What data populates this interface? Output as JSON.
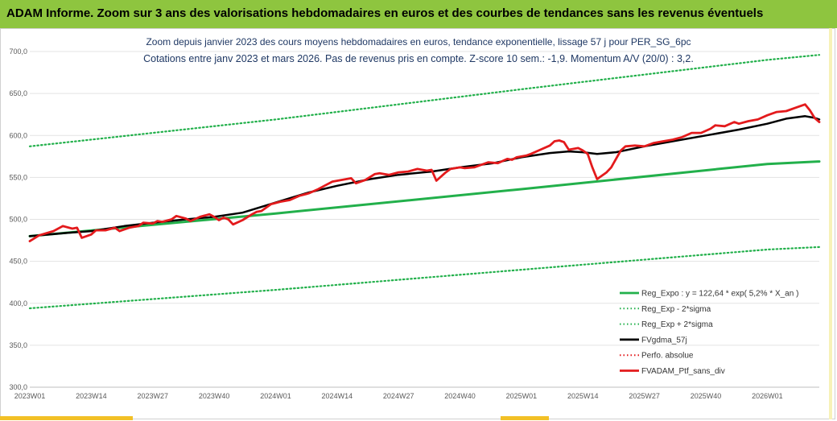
{
  "header": {
    "title": "ADAM Informe. Zoom sur 3 ans des valorisations hebdomadaires en euros et des courbes de tendances sans les revenus éventuels"
  },
  "chart_data": {
    "type": "line",
    "title": "Zoom depuis janvier 2023 des cours moyens hebdomadaires  en euros, tendance exponentielle, lissage 57 j pour PER_SG_6pc",
    "subtitle": "Cotations  entre janv 2023 et mars 2026. Pas de revenus pris en compte. Z-score 10 sem.: -1,9. Momentum A/V (20/0) : 3,2.",
    "ylim": [
      300,
      700
    ],
    "yticks": [
      "300,0",
      "350,0",
      "400,0",
      "450,0",
      "500,0",
      "550,0",
      "600,0",
      "650,0",
      "700,0"
    ],
    "ytick_values": [
      300,
      350,
      400,
      450,
      500,
      550,
      600,
      650,
      700
    ],
    "xticks": [
      "2023W01",
      "2023W14",
      "2023W27",
      "2023W40",
      "2024W01",
      "2024W14",
      "2024W27",
      "2024W40",
      "2025W01",
      "2025W14",
      "2025W27",
      "2025W40",
      "2026W01"
    ],
    "x_range_weeks": [
      0,
      167
    ],
    "grid": "horizontal",
    "legend_position": "bottom-right",
    "series": [
      {
        "name": "Reg_Expo : y = 122,64 * exp( 5,2% *  X_an )",
        "color": "#22b04b",
        "style": "solid",
        "points": [
          [
            0,
            480
          ],
          [
            52,
            507
          ],
          [
            104,
            536
          ],
          [
            156,
            566
          ],
          [
            167,
            569
          ]
        ]
      },
      {
        "name": "Reg_Exp - 2*sigma",
        "color": "#22b04b",
        "style": "dotted",
        "points": [
          [
            0,
            394
          ],
          [
            52,
            416
          ],
          [
            104,
            440
          ],
          [
            156,
            464
          ],
          [
            167,
            467
          ]
        ]
      },
      {
        "name": "Reg_Exp + 2*sigma",
        "color": "#22b04b",
        "style": "dotted",
        "points": [
          [
            0,
            587
          ],
          [
            52,
            619
          ],
          [
            104,
            655
          ],
          [
            156,
            690
          ],
          [
            167,
            696
          ]
        ]
      },
      {
        "name": "FVgdma_57j",
        "color": "#000000",
        "style": "solid",
        "points": [
          [
            0,
            480
          ],
          [
            8,
            484
          ],
          [
            13,
            486
          ],
          [
            20,
            492
          ],
          [
            26,
            496
          ],
          [
            33,
            500
          ],
          [
            39,
            503
          ],
          [
            45,
            508
          ],
          [
            52,
            520
          ],
          [
            59,
            532
          ],
          [
            65,
            540
          ],
          [
            72,
            548
          ],
          [
            78,
            553
          ],
          [
            85,
            557
          ],
          [
            91,
            562
          ],
          [
            98,
            567
          ],
          [
            104,
            574
          ],
          [
            110,
            579
          ],
          [
            114,
            581
          ],
          [
            117,
            580
          ],
          [
            120,
            578
          ],
          [
            124,
            580
          ],
          [
            130,
            587
          ],
          [
            136,
            593
          ],
          [
            143,
            600
          ],
          [
            150,
            607
          ],
          [
            156,
            614
          ],
          [
            160,
            620
          ],
          [
            164,
            623
          ],
          [
            166,
            621
          ],
          [
            167,
            619
          ]
        ]
      },
      {
        "name": "Perfo. absolue",
        "color": "#e31a1c",
        "style": "dotted",
        "points": []
      },
      {
        "name": "FVADAM_Ptf_sans_div",
        "color": "#e31a1c",
        "style": "solid",
        "points": [
          [
            0,
            474
          ],
          [
            2,
            481
          ],
          [
            5,
            486
          ],
          [
            7,
            492
          ],
          [
            9,
            489
          ],
          [
            10,
            490
          ],
          [
            11,
            478
          ],
          [
            13,
            482
          ],
          [
            14,
            487
          ],
          [
            16,
            487
          ],
          [
            18,
            490
          ],
          [
            19,
            486
          ],
          [
            21,
            490
          ],
          [
            23,
            492
          ],
          [
            24,
            496
          ],
          [
            26,
            495
          ],
          [
            27,
            498
          ],
          [
            28,
            497
          ],
          [
            30,
            500
          ],
          [
            31,
            504
          ],
          [
            33,
            501
          ],
          [
            34,
            498
          ],
          [
            36,
            503
          ],
          [
            38,
            506
          ],
          [
            39,
            503
          ],
          [
            40,
            499
          ],
          [
            41,
            502
          ],
          [
            42,
            500
          ],
          [
            43,
            494
          ],
          [
            45,
            499
          ],
          [
            47,
            506
          ],
          [
            48,
            509
          ],
          [
            49,
            510
          ],
          [
            51,
            518
          ],
          [
            53,
            521
          ],
          [
            55,
            523
          ],
          [
            57,
            528
          ],
          [
            59,
            531
          ],
          [
            61,
            536
          ],
          [
            62,
            539
          ],
          [
            64,
            545
          ],
          [
            66,
            547
          ],
          [
            68,
            549
          ],
          [
            69,
            543
          ],
          [
            71,
            547
          ],
          [
            73,
            554
          ],
          [
            74,
            555
          ],
          [
            76,
            553
          ],
          [
            78,
            556
          ],
          [
            80,
            557
          ],
          [
            82,
            560
          ],
          [
            84,
            558
          ],
          [
            85,
            559
          ],
          [
            86,
            546
          ],
          [
            88,
            556
          ],
          [
            89,
            560
          ],
          [
            91,
            562
          ],
          [
            92,
            561
          ],
          [
            94,
            562
          ],
          [
            96,
            566
          ],
          [
            97,
            568
          ],
          [
            99,
            567
          ],
          [
            101,
            572
          ],
          [
            102,
            571
          ],
          [
            103,
            574
          ],
          [
            105,
            576
          ],
          [
            106,
            578
          ],
          [
            108,
            583
          ],
          [
            110,
            588
          ],
          [
            111,
            593
          ],
          [
            112,
            594
          ],
          [
            113,
            592
          ],
          [
            114,
            583
          ],
          [
            116,
            585
          ],
          [
            117,
            582
          ],
          [
            118,
            578
          ],
          [
            119,
            562
          ],
          [
            120,
            548
          ],
          [
            122,
            556
          ],
          [
            123,
            562
          ],
          [
            124,
            572
          ],
          [
            125,
            582
          ],
          [
            126,
            587
          ],
          [
            128,
            588
          ],
          [
            130,
            587
          ],
          [
            132,
            591
          ],
          [
            134,
            593
          ],
          [
            136,
            595
          ],
          [
            138,
            598
          ],
          [
            140,
            603
          ],
          [
            142,
            603
          ],
          [
            144,
            608
          ],
          [
            145,
            612
          ],
          [
            147,
            611
          ],
          [
            149,
            616
          ],
          [
            150,
            614
          ],
          [
            152,
            617
          ],
          [
            154,
            619
          ],
          [
            156,
            624
          ],
          [
            158,
            628
          ],
          [
            160,
            629
          ],
          [
            162,
            633
          ],
          [
            164,
            637
          ],
          [
            165,
            630
          ],
          [
            166,
            621
          ],
          [
            167,
            616
          ]
        ]
      }
    ]
  }
}
